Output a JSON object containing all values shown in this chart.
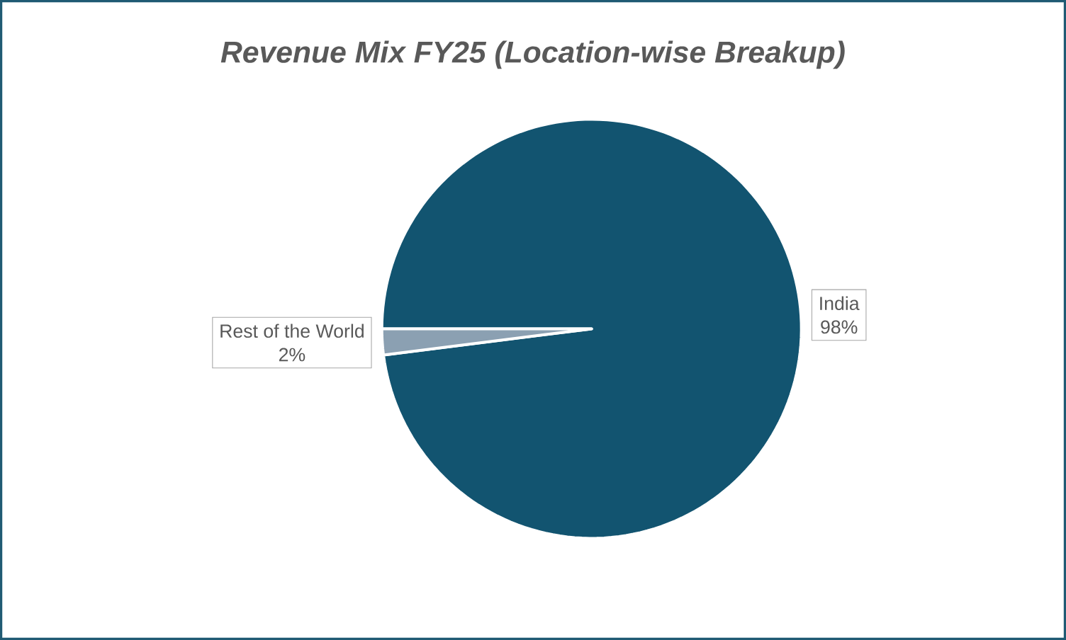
{
  "chart_data": {
    "type": "pie",
    "title": "Revenue Mix FY25 (Location-wise Breakup)",
    "categories": [
      "India",
      "Rest of the World"
    ],
    "values": [
      98,
      2
    ],
    "value_labels": [
      "98%",
      "2%"
    ],
    "colors": [
      "#125470",
      "#8ba0b2"
    ]
  }
}
